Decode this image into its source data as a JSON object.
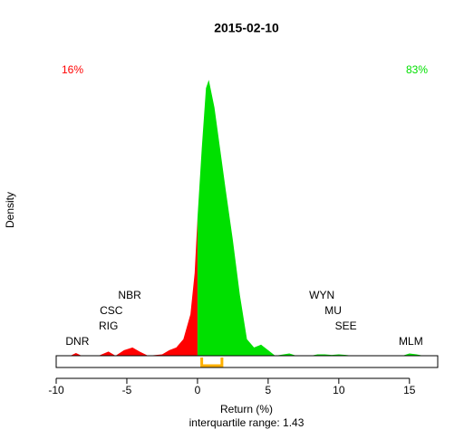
{
  "chart_data": {
    "type": "density",
    "title": "2015-02-10",
    "x_label": "Return (%)",
    "y_label": "Density",
    "subtitle": "interquartile range: 1.43",
    "left_share": "16%",
    "right_share": "83%",
    "negative_color": "#ff0000",
    "positive_color": "#00e000",
    "iqr_color": "#ffb000",
    "x": [
      -10,
      -9,
      -8.6,
      -8.2,
      -7,
      -6.3,
      -5.8,
      -5.2,
      -4.6,
      -4.1,
      -3.5,
      -2.5,
      -2,
      -1.5,
      -1,
      -0.5,
      -0.2,
      0,
      0.3,
      0.6,
      0.8,
      1.2,
      1.6,
      2,
      2.5,
      3,
      3.5,
      4,
      4.5,
      5,
      5.5,
      6.5,
      7,
      8,
      8.5,
      9,
      9.5,
      10,
      10.5,
      11,
      14.5,
      15,
      15.5,
      16,
      17
    ],
    "values": [
      0,
      0,
      0.01,
      0,
      0,
      0.015,
      0,
      0.02,
      0.03,
      0.015,
      0,
      0.005,
      0.02,
      0.03,
      0.06,
      0.15,
      0.3,
      0.5,
      0.75,
      0.97,
      1.0,
      0.9,
      0.75,
      0.6,
      0.42,
      0.22,
      0.06,
      0.03,
      0.04,
      0.02,
      0,
      0.008,
      0,
      0,
      0.005,
      0.005,
      0.003,
      0.005,
      0.003,
      0,
      0,
      0.008,
      0.005,
      0,
      0
    ],
    "iqr_bounds": [
      0.3,
      1.73
    ],
    "annotations": [
      {
        "text": "DNR",
        "x": -8.5
      },
      {
        "text": "RIG",
        "x": -6.3
      },
      {
        "text": "CSC",
        "x": -6.1
      },
      {
        "text": "NBR",
        "x": -4.8
      },
      {
        "text": "WYN",
        "x": 8.8
      },
      {
        "text": "MU",
        "x": 9.6
      },
      {
        "text": "SEE",
        "x": 10.5
      },
      {
        "text": "MLM",
        "x": 15.1
      }
    ],
    "xlim": [
      -10,
      17
    ],
    "ylim": [
      0,
      1.05
    ],
    "xticks": [
      -10,
      -5,
      0,
      5,
      10,
      15
    ]
  }
}
